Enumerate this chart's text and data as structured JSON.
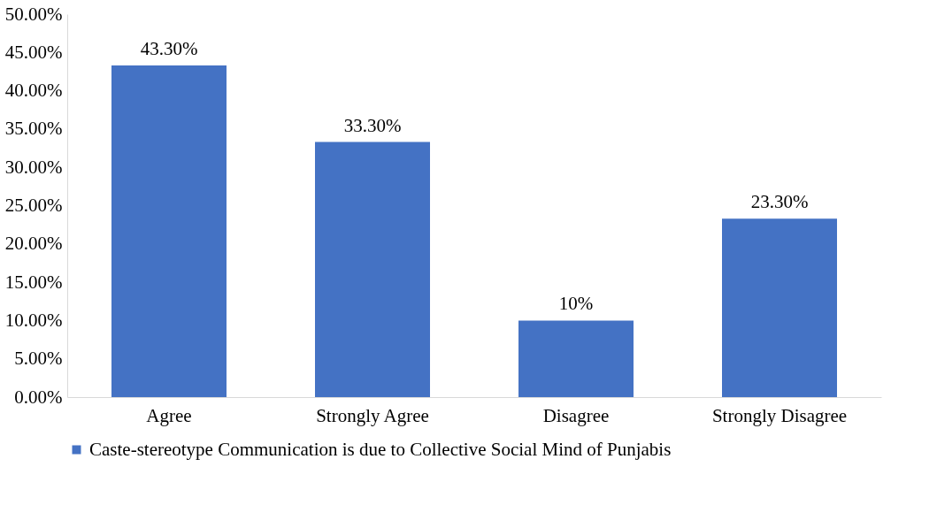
{
  "chart_data": {
    "type": "bar",
    "categories": [
      "Agree",
      "Strongly Agree",
      "Disagree",
      "Strongly Disagree"
    ],
    "series": [
      {
        "name": "Caste-stereotype Communication is due to Collective Social Mind of Punjabis",
        "color": "#4472c4",
        "values": [
          43.3,
          33.3,
          10,
          23.3
        ],
        "value_labels": [
          "43.30%",
          "33.30%",
          "10%",
          "23.30%"
        ]
      }
    ],
    "ylim": [
      0,
      50
    ],
    "yticks": [
      {
        "value": 0,
        "label": "0.00%"
      },
      {
        "value": 5,
        "label": "5.00%"
      },
      {
        "value": 10,
        "label": "10.00%"
      },
      {
        "value": 15,
        "label": "15.00%"
      },
      {
        "value": 20,
        "label": "20.00%"
      },
      {
        "value": 25,
        "label": "25.00%"
      },
      {
        "value": 30,
        "label": "30.00%"
      },
      {
        "value": 35,
        "label": "35.00%"
      },
      {
        "value": 40,
        "label": "40.00%"
      },
      {
        "value": 45,
        "label": "45.00%"
      },
      {
        "value": 50,
        "label": "50.00%"
      }
    ],
    "grid": false,
    "legend": "bottom"
  }
}
